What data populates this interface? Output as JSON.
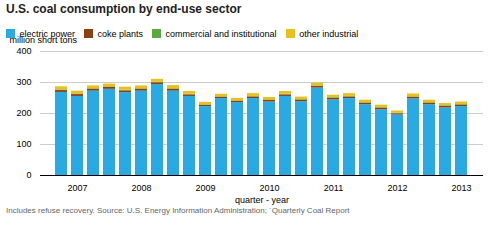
{
  "chart_data": {
    "type": "bar",
    "stacked": true,
    "title": "U.S. coal consumption by end-use sector",
    "ylabel": "million short tons",
    "xlabel": "quarter - year",
    "annotations": [
      "Includes refuse recovery. Source: U.S. Energy Information Administration; ´Quarterly Coal Report"
    ],
    "categories": [
      null,
      "2007",
      null,
      null,
      null,
      "2008",
      null,
      null,
      null,
      "2009",
      null,
      null,
      null,
      "2010",
      null,
      null,
      null,
      "2011",
      null,
      null,
      null,
      "2012",
      null,
      null,
      null,
      "2013"
    ],
    "series": [
      {
        "name": "electric power",
        "color": "#29aae2",
        "values": [
          268,
          255,
          272,
          278,
          267,
          272,
          293,
          272,
          255,
          222,
          248,
          235,
          248,
          237,
          255,
          238,
          282,
          244,
          248,
          228,
          212,
          195,
          247,
          228,
          218,
          222
        ]
      },
      {
        "name": "coke plants",
        "color": "#8B4010",
        "values": [
          6,
          6,
          6,
          6,
          6,
          6,
          6,
          6,
          5,
          4,
          4,
          4,
          5,
          5,
          5,
          5,
          5,
          5,
          5,
          5,
          5,
          4,
          5,
          5,
          5,
          5
        ]
      },
      {
        "name": "commercial and institutional",
        "color": "#5aaa40",
        "values": [
          2,
          2,
          2,
          2,
          2,
          2,
          2,
          2,
          2,
          2,
          2,
          2,
          2,
          2,
          2,
          2,
          2,
          2,
          2,
          2,
          2,
          2,
          2,
          2,
          2,
          2
        ]
      },
      {
        "name": "other industrial",
        "color": "#e8c020",
        "values": [
          10,
          9,
          9,
          9,
          10,
          9,
          9,
          10,
          9,
          8,
          8,
          8,
          9,
          8,
          9,
          8,
          9,
          8,
          9,
          8,
          8,
          7,
          9,
          8,
          7,
          8
        ]
      }
    ],
    "ylim": [
      0,
      400
    ],
    "yticks": [
      0,
      100,
      200,
      300,
      400
    ],
    "grid": true,
    "legend": "top"
  }
}
